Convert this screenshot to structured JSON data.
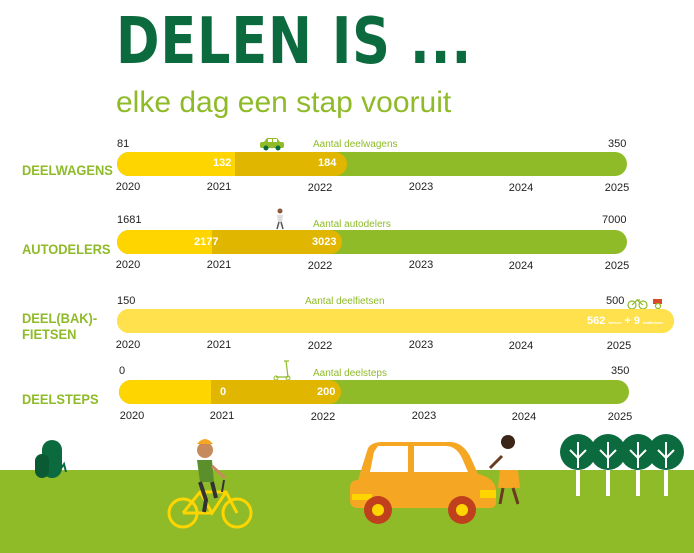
{
  "title": "DELEN IS ...",
  "subtitle": "elke dag een stap vooruit",
  "years": [
    "2020",
    "2021",
    "2022",
    "2023",
    "2024",
    "2025"
  ],
  "sections": {
    "deelwagens": {
      "label": "DEELWAGENS",
      "metric": "Aantal deelwagens",
      "start": "81",
      "end": "350",
      "v1": "132",
      "v2": "184",
      "icon": "car-icon"
    },
    "autodelers": {
      "label": "AUTODELERS",
      "metric": "Aantal autodelers",
      "start": "1681",
      "end": "7000",
      "v1": "2177",
      "v2": "3023",
      "icon": "walking-person-icon"
    },
    "deelfietsen": {
      "label_line1": "DEEL(BAK)-",
      "label_line2": "FIETSEN",
      "metric": "Aantal deelfietsen",
      "start": "150",
      "end": "500",
      "v1": "562",
      "v1_note": "fietsen",
      "plus": "+",
      "v2": "9",
      "v2_note": "bakfietsen",
      "icon": "cargo-bike-icon"
    },
    "deelsteps": {
      "label": "DEELSTEPS",
      "metric": "Aantal deelsteps",
      "start": "0",
      "end": "350",
      "v1": "0",
      "v2": "200",
      "icon": "scooter-icon"
    }
  },
  "colors": {
    "dark_green": "#0c6b3e",
    "lime": "#8fbb29",
    "yellow": "#ffd500",
    "dark_yellow": "#e1b600"
  },
  "scene_icons": [
    "bush-icon",
    "cyclist-icon",
    "car-icon",
    "woman-icon",
    "trees-icon"
  ]
}
